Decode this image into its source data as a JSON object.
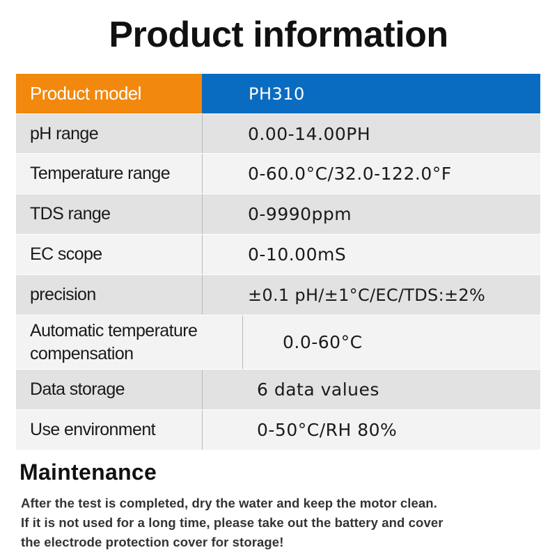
{
  "title": "Product information",
  "specs": {
    "header": {
      "label": "Product model",
      "value": "PH310"
    },
    "rows": [
      {
        "label": "pH range",
        "value": "0.00-14.00PH"
      },
      {
        "label": "Temperature range",
        "value": "0-60.0°C/32.0-122.0°F"
      },
      {
        "label": "TDS range",
        "value": "0-9990ppm"
      },
      {
        "label": "EC scope",
        "value": "0-10.00mS"
      },
      {
        "label": "precision",
        "value": "±0.1 pH/±1°C/EC/TDS:±2%"
      },
      {
        "label_line1": "Automatic temperature",
        "label_line2": "compensation",
        "value": "0.0-60°C"
      },
      {
        "label": "Data storage",
        "value": "6 data values"
      },
      {
        "label": "Use environment",
        "value": "0-50°C/RH 80%"
      }
    ]
  },
  "maintenance": {
    "title": "Maintenance",
    "lines": [
      "After the test is completed, dry the water and keep the motor clean.",
      "If it is not used for a long time, please take out the battery and cover",
      "the electrode protection cover for storage!"
    ]
  },
  "colors": {
    "header_label_bg": "#f2880d",
    "header_value_bg": "#0a6cc1",
    "row_shade": "#e2e2e2",
    "row_plain": "#f3f3f3"
  }
}
